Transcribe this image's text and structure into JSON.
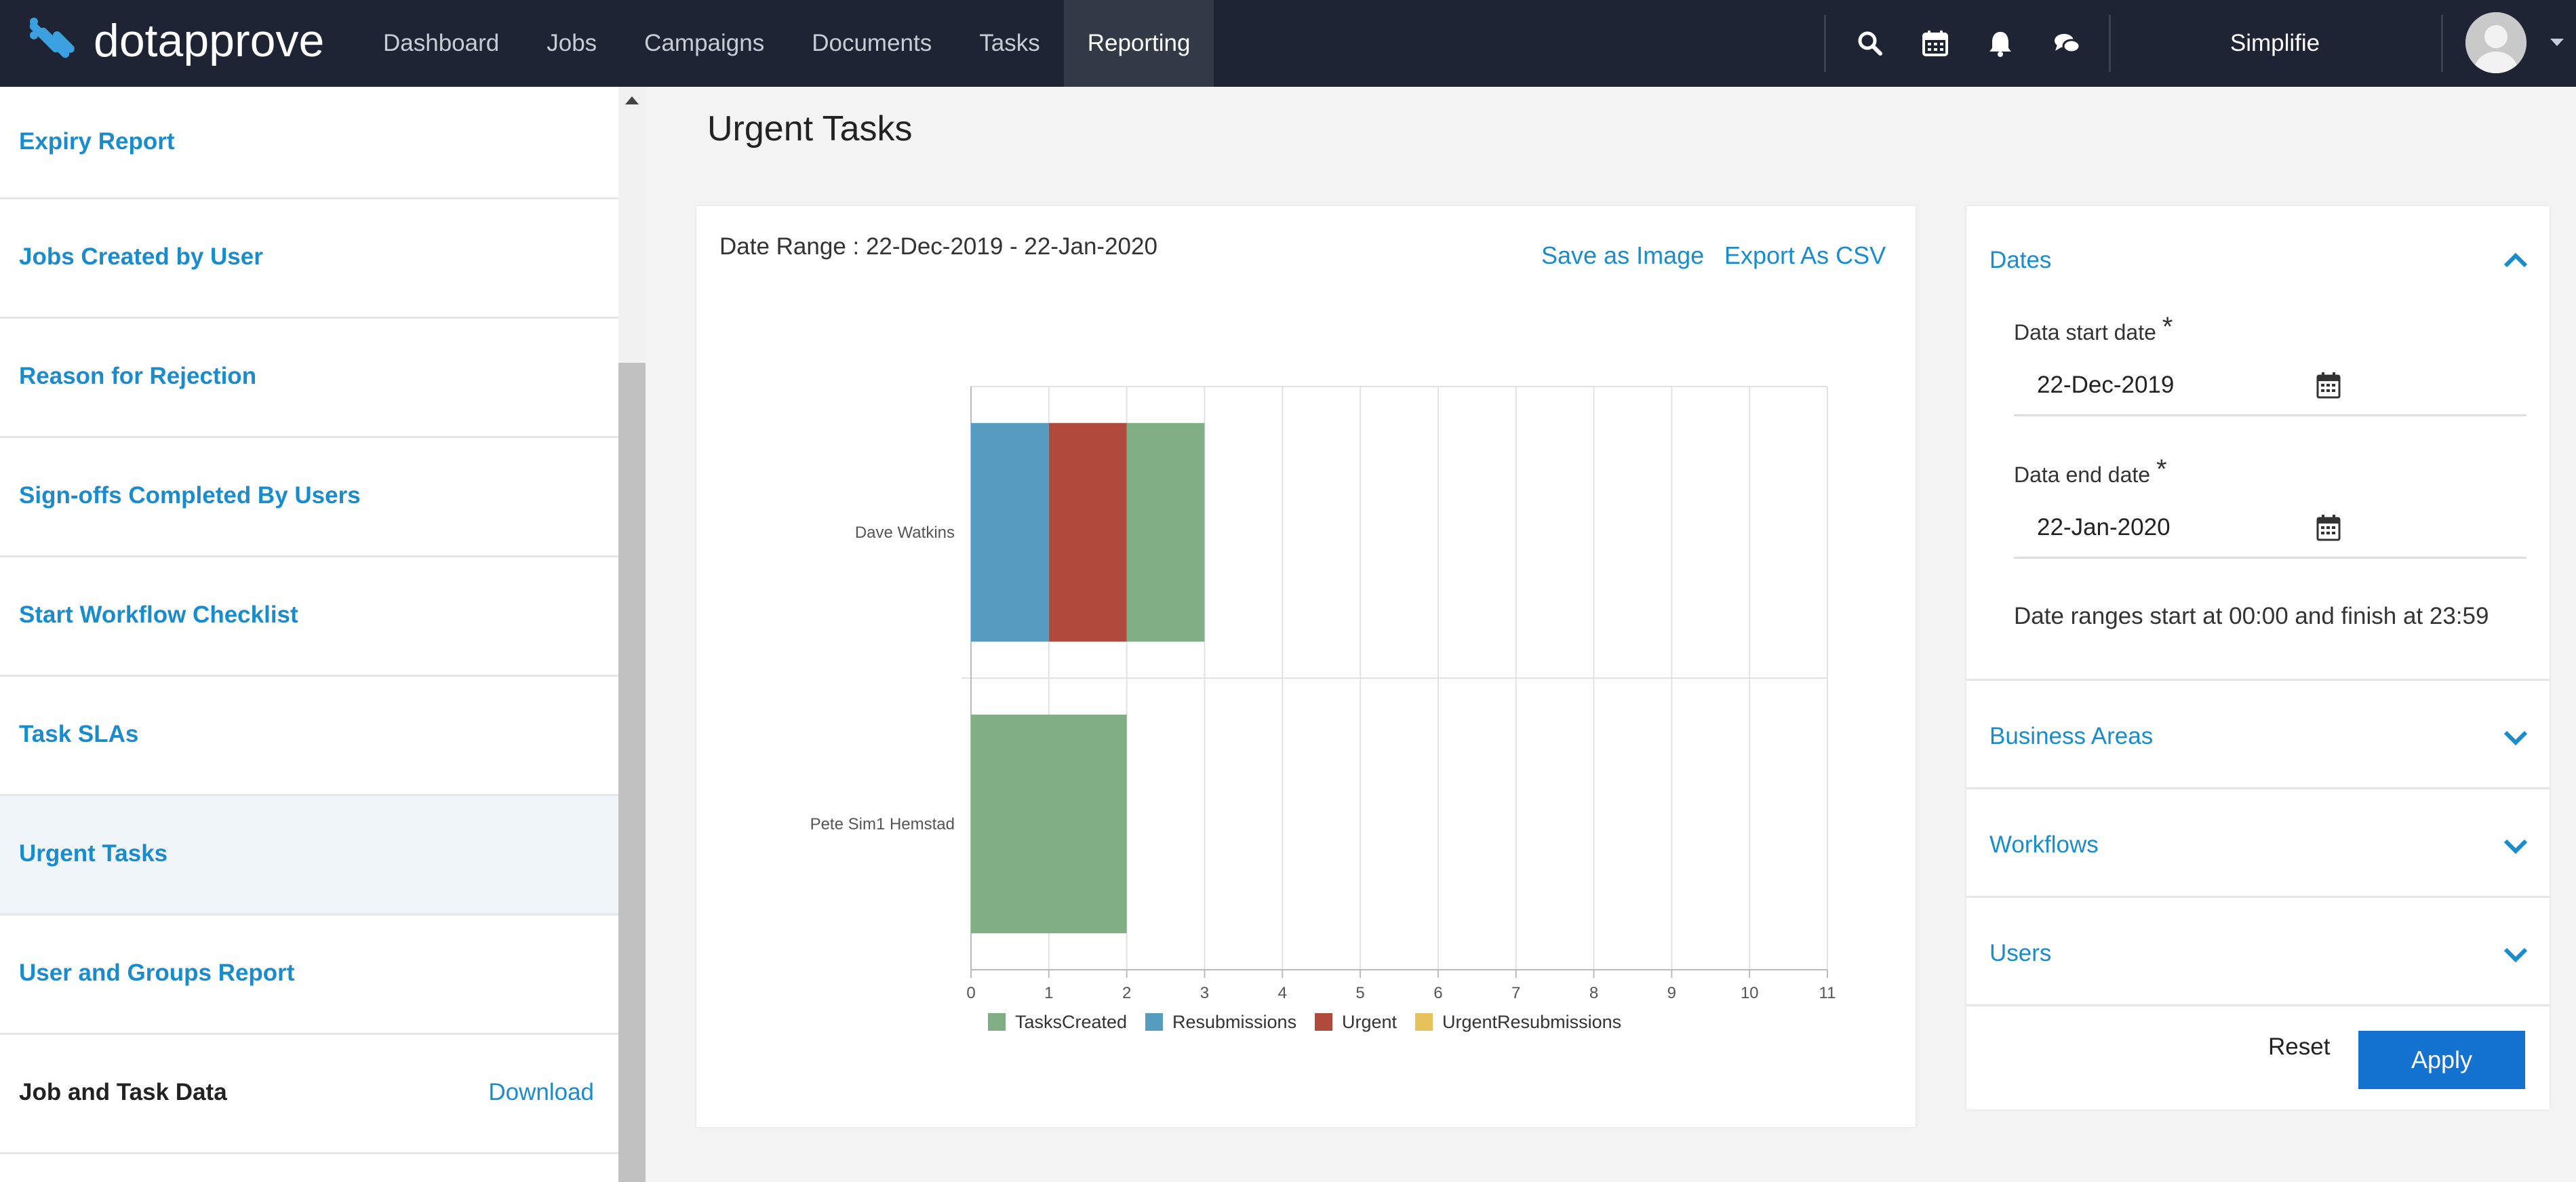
{
  "app": {
    "logo_text": "dotapprove",
    "org_name": "Simplifie",
    "nav": [
      "Dashboard",
      "Jobs",
      "Campaigns",
      "Documents",
      "Tasks",
      "Reporting"
    ],
    "active_nav": "Reporting",
    "icons": [
      "search-icon",
      "calendar-icon",
      "bell-icon",
      "chat-icon",
      "avatar",
      "chevron-down-icon"
    ]
  },
  "sidebar": {
    "items": [
      {
        "label": "Expiry Report"
      },
      {
        "label": "Jobs Created by User"
      },
      {
        "label": "Reason for Rejection"
      },
      {
        "label": "Sign-offs Completed By Users"
      },
      {
        "label": "Start Workflow Checklist"
      },
      {
        "label": "Task SLAs"
      },
      {
        "label": "Urgent Tasks",
        "selected": true
      },
      {
        "label": "User and Groups Report"
      }
    ],
    "data_item": {
      "label": "Job and Task Data",
      "action": "Download"
    }
  },
  "page": {
    "title": "Urgent Tasks",
    "date_range": "Date Range : 22-Dec-2019 - 22-Jan-2020",
    "save_image": "Save as Image",
    "export_csv": "Export As CSV"
  },
  "chart_data": {
    "type": "bar",
    "orientation": "horizontal",
    "stacked": true,
    "categories": [
      "Dave Watkins",
      "Pete Sim1 Hemstad"
    ],
    "series": [
      {
        "name": "TasksCreated",
        "color": "#7fae83",
        "values": [
          1,
          2
        ]
      },
      {
        "name": "Resubmissions",
        "color": "#569cc1",
        "values": [
          1,
          0
        ]
      },
      {
        "name": "Urgent",
        "color": "#b04a3c",
        "values": [
          1,
          0
        ]
      },
      {
        "name": "UrgentResubmissions",
        "color": "#e6c25c",
        "values": [
          0,
          0
        ]
      }
    ],
    "stack_order": [
      "Resubmissions",
      "Urgent",
      "TasksCreated",
      "UrgentResubmissions"
    ],
    "xlim": [
      0,
      11
    ],
    "x_ticks": [
      "0",
      "1",
      "2",
      "3",
      "4",
      "5",
      "6",
      "7",
      "8",
      "9",
      "10",
      "11"
    ],
    "grid": true,
    "legend_position": "bottom"
  },
  "filters": {
    "dates": {
      "title": "Dates",
      "start_label": "Data start date",
      "start_value": "22-Dec-2019",
      "end_label": "Data end date",
      "end_value": "22-Jan-2020",
      "required_mark": "*",
      "hint": "Date ranges start at 00:00 and finish at 23:59"
    },
    "business_areas": "Business Areas",
    "workflows": "Workflows",
    "users": "Users",
    "reset": "Reset",
    "apply": "Apply"
  },
  "colors": {
    "nav_bg": "#1e2433",
    "accent": "#1a8ccc",
    "apply_button": "#1472d0"
  }
}
